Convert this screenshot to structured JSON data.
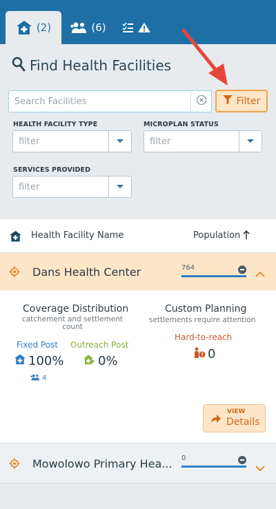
{
  "tabs": [
    {
      "label": "(2)",
      "icon": "hospital-icon",
      "active": true
    },
    {
      "label": "(6)",
      "icon": "people-icon",
      "active": false
    },
    {
      "label": "",
      "icon": "checklist-warning-icon",
      "active": false
    }
  ],
  "find": {
    "title": "Find Health Facilities",
    "search_placeholder": "Search Facilities",
    "filter_label": "Filter"
  },
  "filters": {
    "facility_type": {
      "label": "HEALTH FACILITY TYPE",
      "placeholder": "filter"
    },
    "microplan_status": {
      "label": "MICROPLAN STATUS",
      "placeholder": "filter"
    },
    "services_provided": {
      "label": "SERVICES PROVIDED",
      "placeholder": "filter"
    }
  },
  "table": {
    "col_name": "Health Facility Name",
    "col_population": "Population",
    "sort_icon": "arrow-up-icon"
  },
  "rows": [
    {
      "name": "Dans Health Center",
      "population": "764",
      "expanded": true,
      "detail": {
        "coverage_title": "Coverage Distribution",
        "coverage_sub": "catchement and settlement count",
        "fixed_label": "Fixed Post",
        "fixed_value": "100%",
        "fixed_count": "4",
        "outreach_label": "Outreach Post",
        "outreach_value": "0%",
        "custom_title": "Custom Planning",
        "custom_sub": "settlements require attention",
        "htr_label": "Hard-to-reach",
        "htr_value": "0",
        "view_top": "VIEW",
        "view_bottom": "Details"
      }
    },
    {
      "name": "Mowolowo Primary Hea...",
      "population": "0",
      "expanded": false
    }
  ],
  "colors": {
    "primary": "#1e6fa6",
    "accent_orange": "#f0a24b",
    "highlight_row": "#fde6c8",
    "fixed_blue": "#2f7fc6",
    "outreach_green": "#8cb03a",
    "annotation_red": "#e8463a"
  }
}
